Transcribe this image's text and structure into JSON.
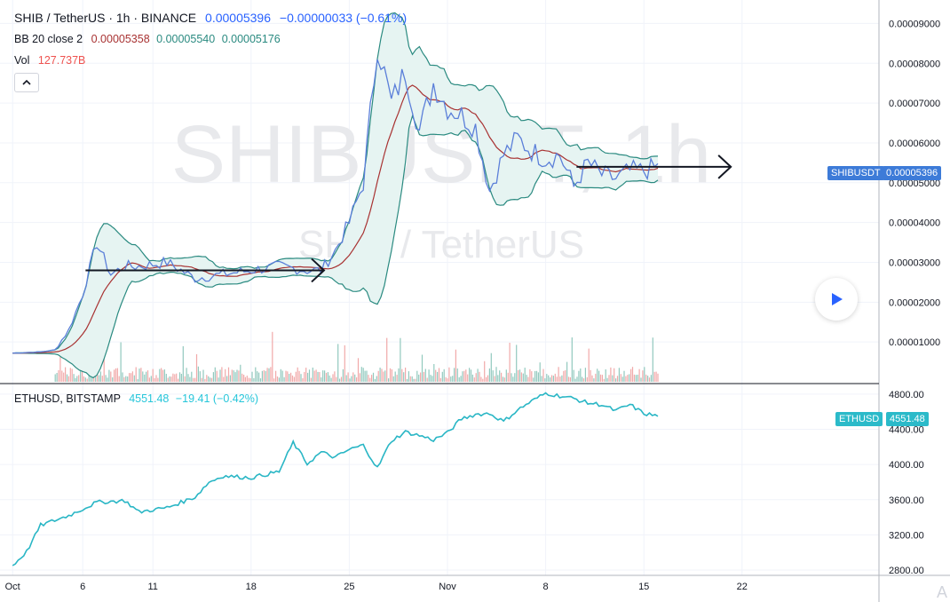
{
  "header": {
    "symbol": "SHIB / TetherUS · 1h · BINANCE",
    "last": "0.00005396",
    "change": "−0.00000033 (−0.61%)",
    "bb_label": "BB 20 close 2",
    "bb_basis": "0.00005358",
    "bb_upper": "0.00005540",
    "bb_lower": "0.00005176",
    "vol_label": "Vol",
    "vol_value": "127.737B"
  },
  "watermark": {
    "main": "SHIBUSDT, 1h",
    "sub": "SHIB / TetherUS"
  },
  "lower_header": {
    "symbol": "ETHUSD, BITSTAMP",
    "last": "4551.48",
    "change": "−19.41 (−0.42%)"
  },
  "price_tags": {
    "shib_name": "SHIBUSDT",
    "shib_price": "0.00005396",
    "eth_name": "ETHUSD",
    "eth_price": "4551.48"
  },
  "corner_mark": "A",
  "colors": {
    "price_line": "#5b7fd9",
    "bb_basis": "#a83232",
    "bb_band": "#2a8a80",
    "bb_fill": "#e6f4f2",
    "vol_up": "#7fbfb3",
    "vol_down": "#ef9a9a",
    "eth_line": "#29b6c5",
    "shib_tag": "#3d7bd8",
    "eth_tag": "#2bbac9",
    "arrow": "#131722"
  },
  "chart_data": [
    {
      "type": "line",
      "series": [
        {
          "name": "SHIB / TetherUS",
          "dates": [
            "Oct 1",
            "Oct 3",
            "Oct 4",
            "Oct 5",
            "Oct 6",
            "Oct 7",
            "Oct 8",
            "Oct 9",
            "Oct 10",
            "Oct 12",
            "Oct 14",
            "Oct 16",
            "Oct 18",
            "Oct 20",
            "Oct 22",
            "Oct 23",
            "Oct 24",
            "Oct 25",
            "Oct 26",
            "Oct 27",
            "Oct 28",
            "Oct 29",
            "Oct 30",
            "Oct 31",
            "Nov 1",
            "Nov 2",
            "Nov 3",
            "Nov 4",
            "Nov 5",
            "Nov 6",
            "Nov 7",
            "Nov 8",
            "Nov 9",
            "Nov 10",
            "Nov 11",
            "Nov 12",
            "Nov 13",
            "Nov 14",
            "Nov 15",
            "Nov 16"
          ],
          "values": [
            7.2e-06,
            7.5e-06,
            8e-06,
            1.3e-05,
            2.2e-05,
            3.5e-05,
            2.7e-05,
            2.9e-05,
            2.9e-05,
            3e-05,
            2.6e-05,
            2.7e-05,
            2.8e-05,
            2.9e-05,
            2.8e-05,
            2.8e-05,
            3.3e-05,
            4e-05,
            5e-05,
            8.5e-05,
            7e-05,
            7.8e-05,
            6.3e-05,
            7.5e-05,
            6.9e-05,
            6.7e-05,
            6.4e-05,
            4.8e-05,
            5.7e-05,
            6.1e-05,
            5.8e-05,
            5.6e-05,
            5.7e-05,
            4.9e-05,
            5.5e-05,
            5.2e-05,
            5.1e-05,
            5.3e-05,
            5.3e-05,
            5.396e-05
          ]
        }
      ],
      "x_ticks": [
        "Oct",
        "6",
        "11",
        "18",
        "25",
        "Nov",
        "8",
        "15",
        "22"
      ],
      "y_ticks": [
        "0.00001000",
        "0.00002000",
        "0.00003000",
        "0.00004000",
        "0.00005000",
        "0.00006000",
        "0.00007000",
        "0.00008000",
        "0.00009000"
      ],
      "ylim": [
        0,
        9.5e-05
      ],
      "indicators": [
        "BB 20 close 2",
        "Vol"
      ],
      "annotations": [
        "arrow Oct 6 – Oct 23 at 0.000028",
        "arrow Nov 10 – Nov 22 at 0.000054"
      ]
    },
    {
      "type": "line",
      "series": [
        {
          "name": "ETHUSD, BITSTAMP",
          "dates": [
            "Oct 1",
            "Oct 2",
            "Oct 3",
            "Oct 5",
            "Oct 7",
            "Oct 9",
            "Oct 10",
            "Oct 12",
            "Oct 14",
            "Oct 15",
            "Oct 16",
            "Oct 18",
            "Oct 20",
            "Oct 21",
            "Oct 22",
            "Oct 23",
            "Oct 24",
            "Oct 25",
            "Oct 26",
            "Oct 27",
            "Oct 28",
            "Oct 29",
            "Oct 30",
            "Oct 31",
            "Nov 1",
            "Nov 2",
            "Nov 3",
            "Nov 4",
            "Nov 5",
            "Nov 6",
            "Nov 7",
            "Nov 8",
            "Nov 9",
            "Nov 10",
            "Nov 11",
            "Nov 12",
            "Nov 13",
            "Nov 14",
            "Nov 15",
            "Nov 16"
          ],
          "values": [
            2850,
            3010,
            3310,
            3420,
            3570,
            3590,
            3460,
            3510,
            3630,
            3800,
            3870,
            3850,
            3920,
            4250,
            4010,
            4140,
            4080,
            4170,
            4220,
            3960,
            4270,
            4370,
            4330,
            4280,
            4360,
            4520,
            4570,
            4580,
            4490,
            4620,
            4720,
            4810,
            4780,
            4750,
            4700,
            4680,
            4610,
            4680,
            4580,
            4551.48
          ]
        }
      ],
      "x_ticks": [
        "Oct",
        "6",
        "11",
        "18",
        "25",
        "Nov",
        "8",
        "15",
        "22"
      ],
      "y_ticks": [
        "2800.00",
        "3200.00",
        "3600.00",
        "4000.00",
        "4400.00",
        "4800.00"
      ],
      "ylim": [
        2740,
        4900
      ]
    }
  ]
}
